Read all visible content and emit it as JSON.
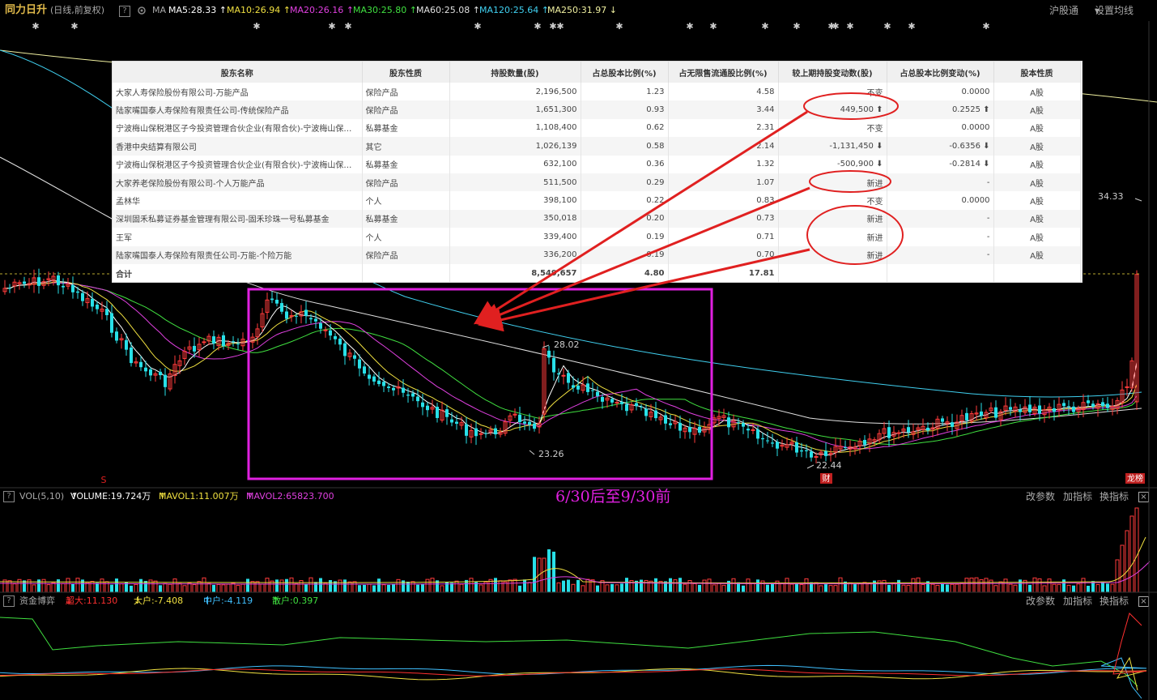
{
  "topbar": {
    "title": "同力日升",
    "period": "(日线,前复权)",
    "help": "?",
    "ma_label": "MA",
    "ma": [
      {
        "text": "MA5:28.33",
        "arrow": "↑",
        "color": "#ffffff"
      },
      {
        "text": "MA10:26.94",
        "arrow": "↑",
        "color": "#f0e040"
      },
      {
        "text": "MA20:26.16",
        "arrow": "↑",
        "color": "#e040e0"
      },
      {
        "text": "MA30:25.80",
        "arrow": "↑",
        "color": "#40e040"
      },
      {
        "text": "MA60:25.08",
        "arrow": "↑",
        "color": "#e0e0e0"
      },
      {
        "text": "MA120:25.64",
        "arrow": "↑",
        "color": "#40d0f0"
      },
      {
        "text": "MA250:31.97",
        "arrow": "↓",
        "color": "#f0f0a0"
      }
    ],
    "market": "沪股通",
    "settings": "设置均线"
  },
  "price_labels": {
    "high_right": "34.33",
    "peak": "28.02",
    "low_mid": "23.26",
    "low_right": "22.44"
  },
  "badges": {
    "s_mark": "S",
    "finance": "财",
    "rank": "龙榜"
  },
  "shareholders": {
    "headers": [
      "股东名称",
      "股东性质",
      "持股数量(股)",
      "占总股本比例(%)",
      "占无限售流通股比例(%)",
      "较上期持股变动数(股)",
      "占总股本比例变动(%)",
      "股本性质"
    ],
    "rows": [
      {
        "name": "大家人寿保险股份有限公司-万能产品",
        "type": "保险产品",
        "shares": "2,196,500",
        "pct_total": "1.23",
        "pct_float": "4.58",
        "change": "不变",
        "change_dir": "",
        "pct_change": "0.0000",
        "pct_dir": "",
        "kind": "A股"
      },
      {
        "name": "陆家嘴国泰人寿保险有限责任公司-传统保险产品",
        "type": "保险产品",
        "shares": "1,651,300",
        "pct_total": "0.93",
        "pct_float": "3.44",
        "change": "449,500",
        "change_dir": "up",
        "pct_change": "0.2525",
        "pct_dir": "up",
        "kind": "A股"
      },
      {
        "name": "宁波梅山保税港区子今投资管理合伙企业(有限合伙)-宁波梅山保税...",
        "type": "私募基金",
        "shares": "1,108,400",
        "pct_total": "0.62",
        "pct_float": "2.31",
        "change": "不变",
        "change_dir": "",
        "pct_change": "0.0000",
        "pct_dir": "",
        "kind": "A股"
      },
      {
        "name": "香港中央结算有限公司",
        "type": "其它",
        "shares": "1,026,139",
        "pct_total": "0.58",
        "pct_float": "2.14",
        "change": "-1,131,450",
        "change_dir": "down",
        "pct_change": "-0.6356",
        "pct_dir": "down",
        "kind": "A股"
      },
      {
        "name": "宁波梅山保税港区子今投资管理合伙企业(有限合伙)-宁波梅山保税...",
        "type": "私募基金",
        "shares": "632,100",
        "pct_total": "0.36",
        "pct_float": "1.32",
        "change": "-500,900",
        "change_dir": "down",
        "pct_change": "-0.2814",
        "pct_dir": "down",
        "kind": "A股"
      },
      {
        "name": "大家养老保险股份有限公司-个人万能产品",
        "type": "保险产品",
        "shares": "511,500",
        "pct_total": "0.29",
        "pct_float": "1.07",
        "change": "新进",
        "change_dir": "",
        "pct_change": "-",
        "pct_dir": "",
        "kind": "A股"
      },
      {
        "name": "孟林华",
        "type": "个人",
        "shares": "398,100",
        "pct_total": "0.22",
        "pct_float": "0.83",
        "change": "不变",
        "change_dir": "",
        "pct_change": "0.0000",
        "pct_dir": "",
        "kind": "A股"
      },
      {
        "name": "深圳固禾私募证券基金管理有限公司-固禾珍珠一号私募基金",
        "type": "私募基金",
        "shares": "350,018",
        "pct_total": "0.20",
        "pct_float": "0.73",
        "change": "新进",
        "change_dir": "",
        "pct_change": "-",
        "pct_dir": "",
        "kind": "A股"
      },
      {
        "name": "王军",
        "type": "个人",
        "shares": "339,400",
        "pct_total": "0.19",
        "pct_float": "0.71",
        "change": "新进",
        "change_dir": "",
        "pct_change": "-",
        "pct_dir": "",
        "kind": "A股"
      },
      {
        "name": "陆家嘴国泰人寿保险有限责任公司-万能-个险万能",
        "type": "保险产品",
        "shares": "336,200",
        "pct_total": "0.19",
        "pct_float": "0.70",
        "change": "新进",
        "change_dir": "",
        "pct_change": "-",
        "pct_dir": "",
        "kind": "A股"
      },
      {
        "name": "合计",
        "type": "",
        "shares": "8,549,657",
        "pct_total": "4.80",
        "pct_float": "17.81",
        "change": "",
        "change_dir": "",
        "pct_change": "",
        "pct_dir": "",
        "kind": ""
      }
    ]
  },
  "caption": "6/30后至9/30前",
  "volume_panel": {
    "help": "?",
    "label": "VOL(5,10)",
    "volume": "VOLUME:19.724万",
    "mavol1": "MAVOL1:11.007万",
    "mavol2": "MAVOL2:65823.700",
    "arrow": "↑",
    "btn_params": "改参数",
    "btn_add": "加指标",
    "btn_swap": "换指标",
    "close": "×"
  },
  "flow_panel": {
    "help": "?",
    "label": "资金博弈",
    "super": "超大:11.130",
    "super_arrow": "↓",
    "big": "大户:-7.408",
    "big_arrow": "↓",
    "mid": "中户:-4.119",
    "mid_arrow": "↑",
    "retail": "散户:0.397",
    "retail_arrow": "↑",
    "btn_params": "改参数",
    "btn_add": "加指标",
    "btn_swap": "换指标",
    "close": "×"
  },
  "chart_data": {
    "type": "candlestick",
    "colors": {
      "up": "#ff3b3b",
      "down": "#28e0e8",
      "ma5": "#ffffff",
      "ma10": "#f0e040",
      "ma20": "#e040e0",
      "ma30": "#40e040",
      "ma60": "#e0e0e0",
      "ma120": "#40d0f0",
      "ma250": "#f0f0a0"
    },
    "annotated_prices": {
      "recent_high": 34.33,
      "local_peak": 28.02,
      "local_low": 23.26,
      "period_low": 22.44
    }
  }
}
